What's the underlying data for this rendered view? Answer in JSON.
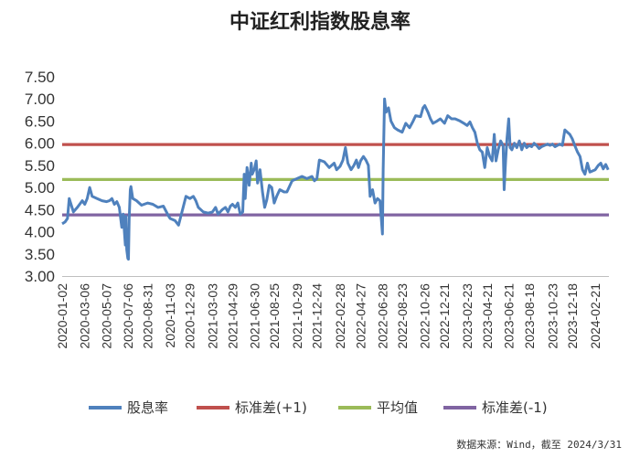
{
  "chart_data": {
    "type": "line",
    "title": "中证红利指数股息率",
    "source_note": "数据来源：Wind，截至 2024/3/31",
    "ylim": [
      3.0,
      7.5
    ],
    "yticks": [
      "3.00",
      "3.50",
      "4.00",
      "4.50",
      "5.00",
      "5.50",
      "6.00",
      "6.50",
      "7.00",
      "7.50"
    ],
    "x_ticks": [
      "2020-01-02",
      "2020-03-06",
      "2020-05-07",
      "2020-07-06",
      "2020-08-31",
      "2020-11-03",
      "2020-12-29",
      "2021-03-03",
      "2021-04-29",
      "2021-06-30",
      "2021-08-25",
      "2021-10-29",
      "2021-12-24",
      "2022-02-28",
      "2022-04-27",
      "2022-06-28",
      "2022-08-23",
      "2022-10-26",
      "2022-12-21",
      "2023-02-23",
      "2023-04-21",
      "2023-06-21",
      "2023-08-18",
      "2023-10-23",
      "2023-12-18",
      "2024-02-21"
    ],
    "grid": false,
    "legend_position": "bottom",
    "series": [
      {
        "name": "股息率",
        "color": "#4f81bd",
        "points": [
          [
            "2020-01-02",
            4.18
          ],
          [
            "2020-01-10",
            4.22
          ],
          [
            "2020-01-17",
            4.3
          ],
          [
            "2020-01-22",
            4.75
          ],
          [
            "2020-02-03",
            4.45
          ],
          [
            "2020-02-14",
            4.55
          ],
          [
            "2020-02-28",
            4.7
          ],
          [
            "2020-03-06",
            4.62
          ],
          [
            "2020-03-13",
            4.75
          ],
          [
            "2020-03-20",
            5.0
          ],
          [
            "2020-03-27",
            4.8
          ],
          [
            "2020-04-10",
            4.75
          ],
          [
            "2020-04-24",
            4.7
          ],
          [
            "2020-05-07",
            4.68
          ],
          [
            "2020-05-15",
            4.7
          ],
          [
            "2020-05-22",
            4.75
          ],
          [
            "2020-05-29",
            4.62
          ],
          [
            "2020-06-05",
            4.68
          ],
          [
            "2020-06-12",
            4.55
          ],
          [
            "2020-06-19",
            4.1
          ],
          [
            "2020-06-23",
            4.4
          ],
          [
            "2020-06-29",
            3.7
          ],
          [
            "2020-07-01",
            4.35
          ],
          [
            "2020-07-03",
            3.6
          ],
          [
            "2020-07-06",
            3.4
          ],
          [
            "2020-07-08",
            3.38
          ],
          [
            "2020-07-10",
            4.3
          ],
          [
            "2020-07-13",
            4.95
          ],
          [
            "2020-07-15",
            5.02
          ],
          [
            "2020-07-20",
            4.75
          ],
          [
            "2020-07-31",
            4.7
          ],
          [
            "2020-08-14",
            4.6
          ],
          [
            "2020-08-31",
            4.65
          ],
          [
            "2020-09-15",
            4.62
          ],
          [
            "2020-09-30",
            4.55
          ],
          [
            "2020-10-15",
            4.58
          ],
          [
            "2020-10-30",
            4.35
          ],
          [
            "2020-11-03",
            4.3
          ],
          [
            "2020-11-17",
            4.25
          ],
          [
            "2020-11-27",
            4.15
          ],
          [
            "2020-12-10",
            4.55
          ],
          [
            "2020-12-18",
            4.8
          ],
          [
            "2020-12-29",
            4.75
          ],
          [
            "2021-01-08",
            4.8
          ],
          [
            "2021-01-15",
            4.7
          ],
          [
            "2021-01-22",
            4.55
          ],
          [
            "2021-02-05",
            4.45
          ],
          [
            "2021-02-19",
            4.42
          ],
          [
            "2021-03-03",
            4.45
          ],
          [
            "2021-03-12",
            4.55
          ],
          [
            "2021-03-19",
            4.4
          ],
          [
            "2021-03-31",
            4.5
          ],
          [
            "2021-04-09",
            4.55
          ],
          [
            "2021-04-16",
            4.45
          ],
          [
            "2021-04-23",
            4.58
          ],
          [
            "2021-04-29",
            4.62
          ],
          [
            "2021-05-07",
            4.55
          ],
          [
            "2021-05-14",
            4.65
          ],
          [
            "2021-05-21",
            4.4
          ],
          [
            "2021-05-28",
            4.45
          ],
          [
            "2021-06-01",
            5.3
          ],
          [
            "2021-06-04",
            4.75
          ],
          [
            "2021-06-09",
            5.45
          ],
          [
            "2021-06-15",
            5.05
          ],
          [
            "2021-06-21",
            5.55
          ],
          [
            "2021-06-24",
            5.3
          ],
          [
            "2021-06-30",
            5.42
          ],
          [
            "2021-07-05",
            5.6
          ],
          [
            "2021-07-09",
            5.1
          ],
          [
            "2021-07-16",
            5.4
          ],
          [
            "2021-07-23",
            4.9
          ],
          [
            "2021-07-29",
            4.55
          ],
          [
            "2021-08-04",
            4.72
          ],
          [
            "2021-08-11",
            5.05
          ],
          [
            "2021-08-18",
            5.0
          ],
          [
            "2021-08-25",
            4.65
          ],
          [
            "2021-09-01",
            4.8
          ],
          [
            "2021-09-10",
            4.95
          ],
          [
            "2021-09-22",
            4.9
          ],
          [
            "2021-09-30",
            4.9
          ],
          [
            "2021-10-15",
            5.15
          ],
          [
            "2021-10-29",
            5.2
          ],
          [
            "2021-11-12",
            5.25
          ],
          [
            "2021-11-26",
            5.2
          ],
          [
            "2021-12-10",
            5.25
          ],
          [
            "2021-12-17",
            5.15
          ],
          [
            "2021-12-24",
            5.2
          ],
          [
            "2021-12-31",
            5.62
          ],
          [
            "2022-01-14",
            5.58
          ],
          [
            "2022-01-28",
            5.45
          ],
          [
            "2022-02-11",
            5.55
          ],
          [
            "2022-02-18",
            5.4
          ],
          [
            "2022-02-28",
            5.48
          ],
          [
            "2022-03-08",
            5.62
          ],
          [
            "2022-03-15",
            5.9
          ],
          [
            "2022-03-22",
            5.55
          ],
          [
            "2022-03-31",
            5.4
          ],
          [
            "2022-04-08",
            5.5
          ],
          [
            "2022-04-15",
            5.62
          ],
          [
            "2022-04-21",
            5.45
          ],
          [
            "2022-04-27",
            5.6
          ],
          [
            "2022-05-05",
            5.7
          ],
          [
            "2022-05-12",
            5.62
          ],
          [
            "2022-05-19",
            5.5
          ],
          [
            "2022-05-24",
            4.8
          ],
          [
            "2022-05-31",
            4.95
          ],
          [
            "2022-06-07",
            4.65
          ],
          [
            "2022-06-14",
            4.75
          ],
          [
            "2022-06-21",
            4.7
          ],
          [
            "2022-06-28",
            3.95
          ],
          [
            "2022-06-30",
            5.4
          ],
          [
            "2022-07-04",
            7.0
          ],
          [
            "2022-07-08",
            6.7
          ],
          [
            "2022-07-15",
            6.8
          ],
          [
            "2022-07-22",
            6.5
          ],
          [
            "2022-08-01",
            6.35
          ],
          [
            "2022-08-10",
            6.3
          ],
          [
            "2022-08-23",
            6.25
          ],
          [
            "2022-09-02",
            6.45
          ],
          [
            "2022-09-13",
            6.35
          ],
          [
            "2022-09-23",
            6.5
          ],
          [
            "2022-09-30",
            6.62
          ],
          [
            "2022-10-14",
            6.6
          ],
          [
            "2022-10-21",
            6.8
          ],
          [
            "2022-10-26",
            6.85
          ],
          [
            "2022-11-04",
            6.7
          ],
          [
            "2022-11-11",
            6.55
          ],
          [
            "2022-11-18",
            6.45
          ],
          [
            "2022-11-30",
            6.5
          ],
          [
            "2022-12-09",
            6.55
          ],
          [
            "2022-12-21",
            6.45
          ],
          [
            "2022-12-30",
            6.62
          ],
          [
            "2023-01-10",
            6.55
          ],
          [
            "2023-01-20",
            6.55
          ],
          [
            "2023-02-03",
            6.5
          ],
          [
            "2023-02-14",
            6.45
          ],
          [
            "2023-02-23",
            6.4
          ],
          [
            "2023-03-03",
            6.48
          ],
          [
            "2023-03-10",
            6.35
          ],
          [
            "2023-03-17",
            6.25
          ],
          [
            "2023-03-24",
            6.0
          ],
          [
            "2023-03-31",
            5.85
          ],
          [
            "2023-04-07",
            5.8
          ],
          [
            "2023-04-14",
            5.45
          ],
          [
            "2023-04-21",
            5.9
          ],
          [
            "2023-04-28",
            5.7
          ],
          [
            "2023-05-05",
            5.6
          ],
          [
            "2023-05-11",
            6.2
          ],
          [
            "2023-05-16",
            5.6
          ],
          [
            "2023-05-22",
            5.85
          ],
          [
            "2023-05-29",
            6.05
          ],
          [
            "2023-06-05",
            5.95
          ],
          [
            "2023-06-08",
            4.95
          ],
          [
            "2023-06-12",
            5.6
          ],
          [
            "2023-06-16",
            6.1
          ],
          [
            "2023-06-21",
            6.55
          ],
          [
            "2023-06-25",
            5.9
          ],
          [
            "2023-06-30",
            5.85
          ],
          [
            "2023-07-07",
            6.0
          ],
          [
            "2023-07-14",
            5.9
          ],
          [
            "2023-07-21",
            6.05
          ],
          [
            "2023-07-28",
            5.85
          ],
          [
            "2023-08-04",
            6.0
          ],
          [
            "2023-08-11",
            5.9
          ],
          [
            "2023-08-18",
            5.95
          ],
          [
            "2023-08-25",
            5.92
          ],
          [
            "2023-09-01",
            6.0
          ],
          [
            "2023-09-08",
            5.95
          ],
          [
            "2023-09-15",
            5.88
          ],
          [
            "2023-09-22",
            5.92
          ],
          [
            "2023-10-09",
            5.98
          ],
          [
            "2023-10-16",
            5.95
          ],
          [
            "2023-10-23",
            5.98
          ],
          [
            "2023-10-30",
            5.92
          ],
          [
            "2023-11-06",
            5.95
          ],
          [
            "2023-11-13",
            5.98
          ],
          [
            "2023-11-20",
            5.95
          ],
          [
            "2023-11-27",
            6.3
          ],
          [
            "2023-12-04",
            6.25
          ],
          [
            "2023-12-11",
            6.2
          ],
          [
            "2023-12-18",
            6.1
          ],
          [
            "2023-12-25",
            5.95
          ],
          [
            "2024-01-02",
            5.8
          ],
          [
            "2024-01-09",
            5.7
          ],
          [
            "2024-01-16",
            5.4
          ],
          [
            "2024-01-23",
            5.3
          ],
          [
            "2024-01-30",
            5.55
          ],
          [
            "2024-02-06",
            5.35
          ],
          [
            "2024-02-21",
            5.4
          ],
          [
            "2024-03-01",
            5.5
          ],
          [
            "2024-03-08",
            5.55
          ],
          [
            "2024-03-15",
            5.42
          ],
          [
            "2024-03-22",
            5.52
          ],
          [
            "2024-03-29",
            5.4
          ]
        ]
      },
      {
        "name": "标准差(+1)",
        "color": "#c0504d",
        "value": 5.97
      },
      {
        "name": "平均值",
        "color": "#9bbb59",
        "value": 5.18
      },
      {
        "name": "标准差(-1)",
        "color": "#8064a2",
        "value": 4.38
      }
    ]
  }
}
